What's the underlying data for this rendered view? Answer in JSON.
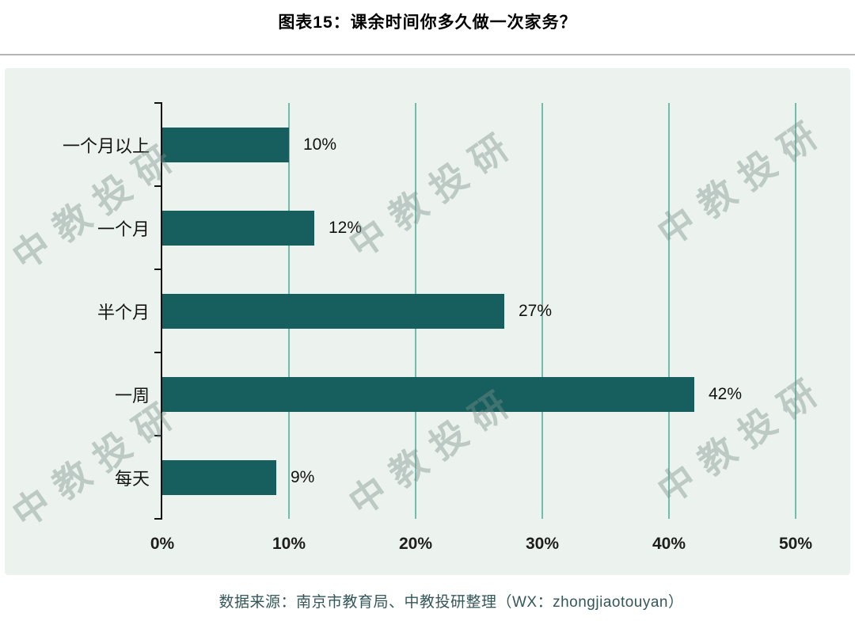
{
  "title": "图表15：课余时间你多久做一次家务？",
  "source": "数据来源：南京市教育局、中教投研整理（WX：zhongjiaotouyan）",
  "watermark": {
    "text": "中教投研"
  },
  "colors": {
    "bar": "#175e5e",
    "panel_bg": "#ecf3ef",
    "grid": "#5bb2a2",
    "axis": "#111111"
  },
  "chart_data": {
    "type": "bar",
    "orientation": "horizontal",
    "title": "图表15：课余时间你多久做一次家务？",
    "categories": [
      "一个月以上",
      "一个月",
      "半个月",
      "一周",
      "每天"
    ],
    "values": [
      10,
      12,
      27,
      42,
      9
    ],
    "value_labels": [
      "10%",
      "12%",
      "27%",
      "42%",
      "9%"
    ],
    "xlim": [
      0,
      50
    ],
    "x_tick_values": [
      0,
      10,
      20,
      30,
      40,
      50
    ],
    "x_ticks": [
      "0%",
      "10%",
      "20%",
      "30%",
      "40%",
      "50%"
    ],
    "grid": "vertical",
    "legend": "none"
  }
}
